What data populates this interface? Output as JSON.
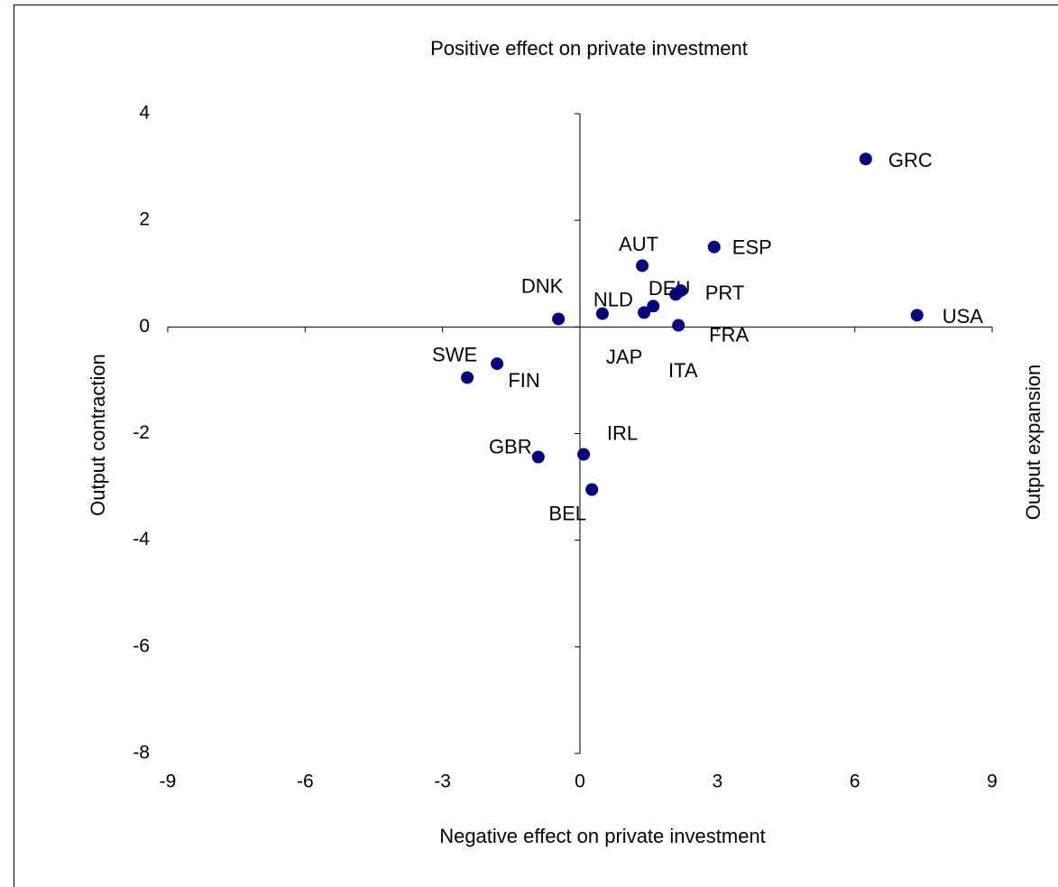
{
  "chart_data": {
    "type": "scatter",
    "title": "Positive effect on private investment",
    "x_label": "Negative effect on private investment",
    "y_label": "Output contraction",
    "y2_label": "Output expansion",
    "xlim": [
      -9,
      9
    ],
    "xticks": [
      -9,
      -6,
      -3,
      0,
      3,
      6,
      9
    ],
    "ylim": [
      -8,
      4
    ],
    "yticks": [
      -8,
      -6,
      -4,
      -2,
      0,
      2,
      4
    ],
    "grid": false,
    "color": "#000080",
    "labels": [
      "GRC",
      "ESP",
      "AUT",
      "DEU",
      "PRT",
      "NLD",
      "JAP",
      "ITA",
      "FRA",
      "USA",
      "DNK",
      "SWE",
      "FIN",
      "GBR",
      "IRL",
      "BEL"
    ],
    "x": [
      6.24,
      2.93,
      1.36,
      2.09,
      2.2,
      0.49,
      1.4,
      1.6,
      2.15,
      7.36,
      -0.47,
      -2.46,
      -1.81,
      -0.91,
      0.08,
      0.26
    ],
    "y": [
      3.15,
      1.5,
      1.15,
      0.61,
      0.68,
      0.25,
      0.27,
      0.39,
      0.03,
      0.22,
      0.15,
      -0.95,
      -0.69,
      -2.44,
      -2.39,
      -3.05
    ]
  }
}
